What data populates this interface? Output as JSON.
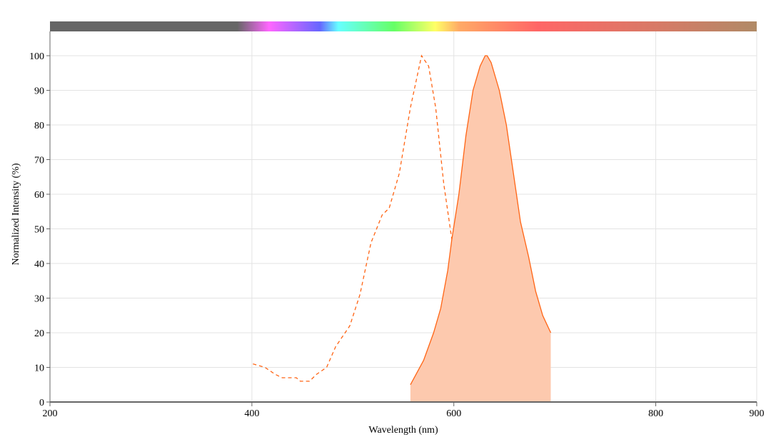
{
  "chart_data": {
    "type": "area",
    "title": "",
    "xlabel": "Wavelength (nm)",
    "ylabel": "Normalized Intensity (%)",
    "xlim": [
      200,
      900
    ],
    "ylim": [
      0,
      100
    ],
    "xticks": [
      "200",
      "400",
      "600",
      "800",
      "900"
    ],
    "xtick_values": [
      200,
      400,
      600,
      800,
      900
    ],
    "yticks": [
      "0",
      "10",
      "20",
      "30",
      "40",
      "50",
      "60",
      "70",
      "80",
      "90",
      "100"
    ],
    "ytick_values": [
      0,
      10,
      20,
      30,
      40,
      50,
      60,
      70,
      80,
      90,
      100
    ],
    "grid": true,
    "spectrum_bar": true,
    "colors": {
      "line": "#ff6414",
      "fill": "#fdc9ae",
      "grid": "#e3e3e3",
      "axis": "#666666"
    },
    "series": [
      {
        "style": "dashed",
        "filled": false,
        "x": [
          401,
          413,
          423,
          430,
          444,
          448,
          457,
          464,
          474,
          483,
          497,
          507,
          518,
          529,
          536,
          546,
          557,
          568,
          575,
          582,
          590,
          599,
          610,
          618,
          631,
          642
        ],
        "y": [
          11,
          10,
          8,
          7,
          7,
          6,
          6,
          8,
          10,
          16,
          22,
          31,
          46,
          54,
          56,
          66,
          85,
          100,
          97,
          85,
          63,
          45,
          21,
          11,
          4,
          1.5
        ]
      },
      {
        "style": "solid",
        "filled": true,
        "x": [
          557,
          570,
          580,
          587,
          594,
          598,
          605,
          612,
          619,
          626,
          631,
          633,
          637,
          645,
          652,
          659,
          666,
          674,
          681,
          688,
          696
        ],
        "y": [
          5,
          12,
          20,
          27,
          38,
          47,
          60,
          77,
          90,
          97,
          100,
          100,
          98,
          90,
          80,
          66,
          52,
          42,
          32,
          25,
          20
        ]
      }
    ]
  }
}
